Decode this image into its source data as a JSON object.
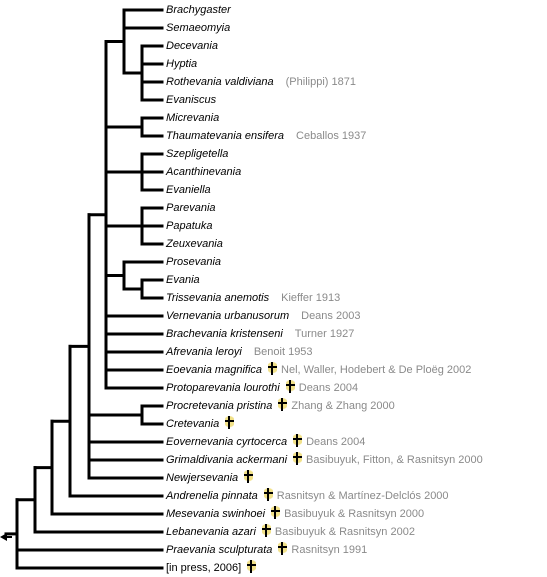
{
  "leaves": [
    {
      "name": "Brachygaster",
      "authority": "",
      "fossil": false
    },
    {
      "name": "Semaeomyia",
      "authority": "",
      "fossil": false
    },
    {
      "name": "Decevania",
      "authority": "",
      "fossil": false
    },
    {
      "name": "Hyptia",
      "authority": "",
      "fossil": false
    },
    {
      "name": "Rothevania valdiviana",
      "authority": "(Philippi) 1871",
      "fossil": false
    },
    {
      "name": "Evaniscus",
      "authority": "",
      "fossil": false
    },
    {
      "name": "Micrevania",
      "authority": "",
      "fossil": false
    },
    {
      "name": "Thaumatevania ensifera",
      "authority": "Ceballos 1937",
      "fossil": false
    },
    {
      "name": "Szepligetella",
      "authority": "",
      "fossil": false
    },
    {
      "name": "Acanthinevania",
      "authority": "",
      "fossil": false
    },
    {
      "name": "Evaniella",
      "authority": "",
      "fossil": false
    },
    {
      "name": "Parevania",
      "authority": "",
      "fossil": false
    },
    {
      "name": "Papatuka",
      "authority": "",
      "fossil": false
    },
    {
      "name": "Zeuxevania",
      "authority": "",
      "fossil": false
    },
    {
      "name": "Prosevania",
      "authority": "",
      "fossil": false
    },
    {
      "name": "Evania",
      "authority": "",
      "fossil": false
    },
    {
      "name": "Trissevania anemotis",
      "authority": "Kieffer 1913",
      "fossil": false
    },
    {
      "name": "Vernevania urbanusorum",
      "authority": "Deans 2003",
      "fossil": false
    },
    {
      "name": "Brachevania kristenseni",
      "authority": "Turner 1927",
      "fossil": false
    },
    {
      "name": "Afrevania leroyi",
      "authority": "Benoit 1953",
      "fossil": false
    },
    {
      "name": "Eoevania magnifica",
      "authority": "Nel, Waller, Hodebert & De Ploëg 2002",
      "fossil": true
    },
    {
      "name": "Protoparevania lourothi",
      "authority": "Deans 2004",
      "fossil": true
    },
    {
      "name": "Procretevania pristina",
      "authority": "Zhang & Zhang 2000",
      "fossil": true
    },
    {
      "name": "Cretevania",
      "authority": "",
      "fossil": true
    },
    {
      "name": "Eovernevania cyrtocerca",
      "authority": "Deans 2004",
      "fossil": true
    },
    {
      "name": "Grimaldivania ackermani",
      "authority": "Basibuyuk, Fitton, & Rasnitsyn 2000",
      "fossil": true
    },
    {
      "name": "Newjersevania",
      "authority": "",
      "fossil": true
    },
    {
      "name": "Andrenelia pinnata",
      "authority": "Rasnitsyn & Martínez-Delclós 2000",
      "fossil": true
    },
    {
      "name": "Mesevania swinhoei",
      "authority": "Basibuyuk & Rasnitsyn 2000",
      "fossil": true
    },
    {
      "name": "Lebanevania azari",
      "authority": "Basibuyuk & Rasnitsyn 2002",
      "fossil": true
    },
    {
      "name": "Praevania sculpturata",
      "authority": "Rasnitsyn 1991",
      "fossil": true
    },
    {
      "name": "[in press, 2006]",
      "authority": "",
      "fossil": true,
      "plain": true
    }
  ],
  "colors": {
    "line": "#000000",
    "authority": "#8a8a8a",
    "fossil_glow": "#e6c828"
  },
  "icons": {
    "fossil": "dagger-icon",
    "root": "arrow-left-icon"
  }
}
